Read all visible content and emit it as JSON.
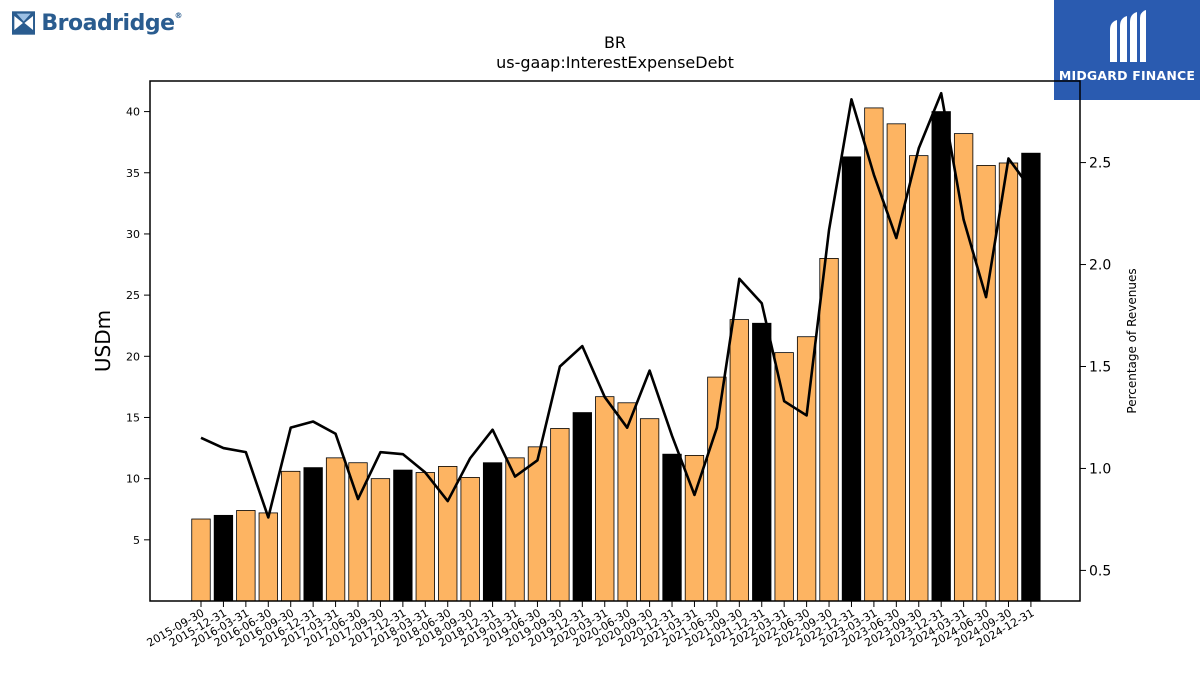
{
  "brand_left": {
    "name": "Broadridge",
    "trademark": "®",
    "icon": "broadridge-logo-icon",
    "color": "#2a5c8f"
  },
  "brand_right": {
    "name": "MIDGARD FINANCE",
    "icon": "midgard-logo-icon",
    "background": "#2a5bb0"
  },
  "chart_data": {
    "type": "bar",
    "title": "BR",
    "subtitle": "us-gaap:InterestExpenseDebt",
    "ylabel": "USDm",
    "y2label": "Percentage of Revenues",
    "ylim": [
      0,
      42.5
    ],
    "y2lim": [
      0.35,
      2.9
    ],
    "yticks": [
      5,
      10,
      15,
      20,
      25,
      30,
      35,
      40
    ],
    "y2ticks": [
      0.5,
      1.0,
      1.5,
      2.0,
      2.5
    ],
    "y2tick_labels": [
      "0.5",
      "1.0",
      "1.5",
      "2.0",
      "2.5"
    ],
    "grid": false,
    "colors": {
      "quarter": "#fdb462",
      "fiscal_year_end": "#000000",
      "line": "#000000"
    },
    "categories": [
      "2015-09-30",
      "2015-12-31",
      "2016-03-31",
      "2016-06-30",
      "2016-09-30",
      "2016-12-31",
      "2017-03-31",
      "2017-06-30",
      "2017-09-30",
      "2017-12-31",
      "2018-03-31",
      "2018-06-30",
      "2018-09-30",
      "2018-12-31",
      "2019-03-31",
      "2019-06-30",
      "2019-09-30",
      "2019-12-31",
      "2020-03-31",
      "2020-06-30",
      "2020-09-30",
      "2020-12-31",
      "2021-03-31",
      "2021-06-30",
      "2021-09-30",
      "2021-12-31",
      "2022-03-31",
      "2022-06-30",
      "2022-09-30",
      "2022-12-31",
      "2023-03-31",
      "2023-06-30",
      "2023-09-30",
      "2023-12-31",
      "2024-03-31",
      "2024-06-30",
      "2024-09-30",
      "2024-12-31"
    ],
    "series": [
      {
        "kind": "bar",
        "axis": "left",
        "values": [
          6.7,
          7.0,
          7.4,
          7.2,
          10.6,
          10.9,
          11.7,
          11.3,
          10.0,
          10.7,
          10.5,
          11.0,
          10.1,
          11.3,
          11.7,
          12.6,
          14.1,
          15.4,
          16.7,
          16.2,
          14.9,
          12.0,
          11.9,
          18.3,
          23.0,
          22.7,
          20.3,
          21.6,
          28.0,
          36.3,
          40.3,
          39.0,
          36.4,
          40.0,
          38.2,
          35.6,
          35.8,
          36.6
        ],
        "highlight": [
          false,
          true,
          false,
          false,
          false,
          true,
          false,
          false,
          false,
          true,
          false,
          false,
          false,
          true,
          false,
          false,
          false,
          true,
          false,
          false,
          false,
          true,
          false,
          false,
          false,
          true,
          false,
          false,
          false,
          true,
          false,
          false,
          false,
          true,
          false,
          false,
          false,
          true
        ]
      },
      {
        "kind": "line",
        "axis": "right",
        "values": [
          1.15,
          1.1,
          1.08,
          0.76,
          1.2,
          1.23,
          1.17,
          0.85,
          1.08,
          1.07,
          0.98,
          0.84,
          1.05,
          1.19,
          0.96,
          1.04,
          1.5,
          1.6,
          1.35,
          1.2,
          1.48,
          1.16,
          0.87,
          1.2,
          1.93,
          1.81,
          1.33,
          1.26,
          2.17,
          2.81,
          2.44,
          2.13,
          2.57,
          2.84,
          2.22,
          1.84,
          2.52,
          2.37
        ]
      }
    ]
  }
}
